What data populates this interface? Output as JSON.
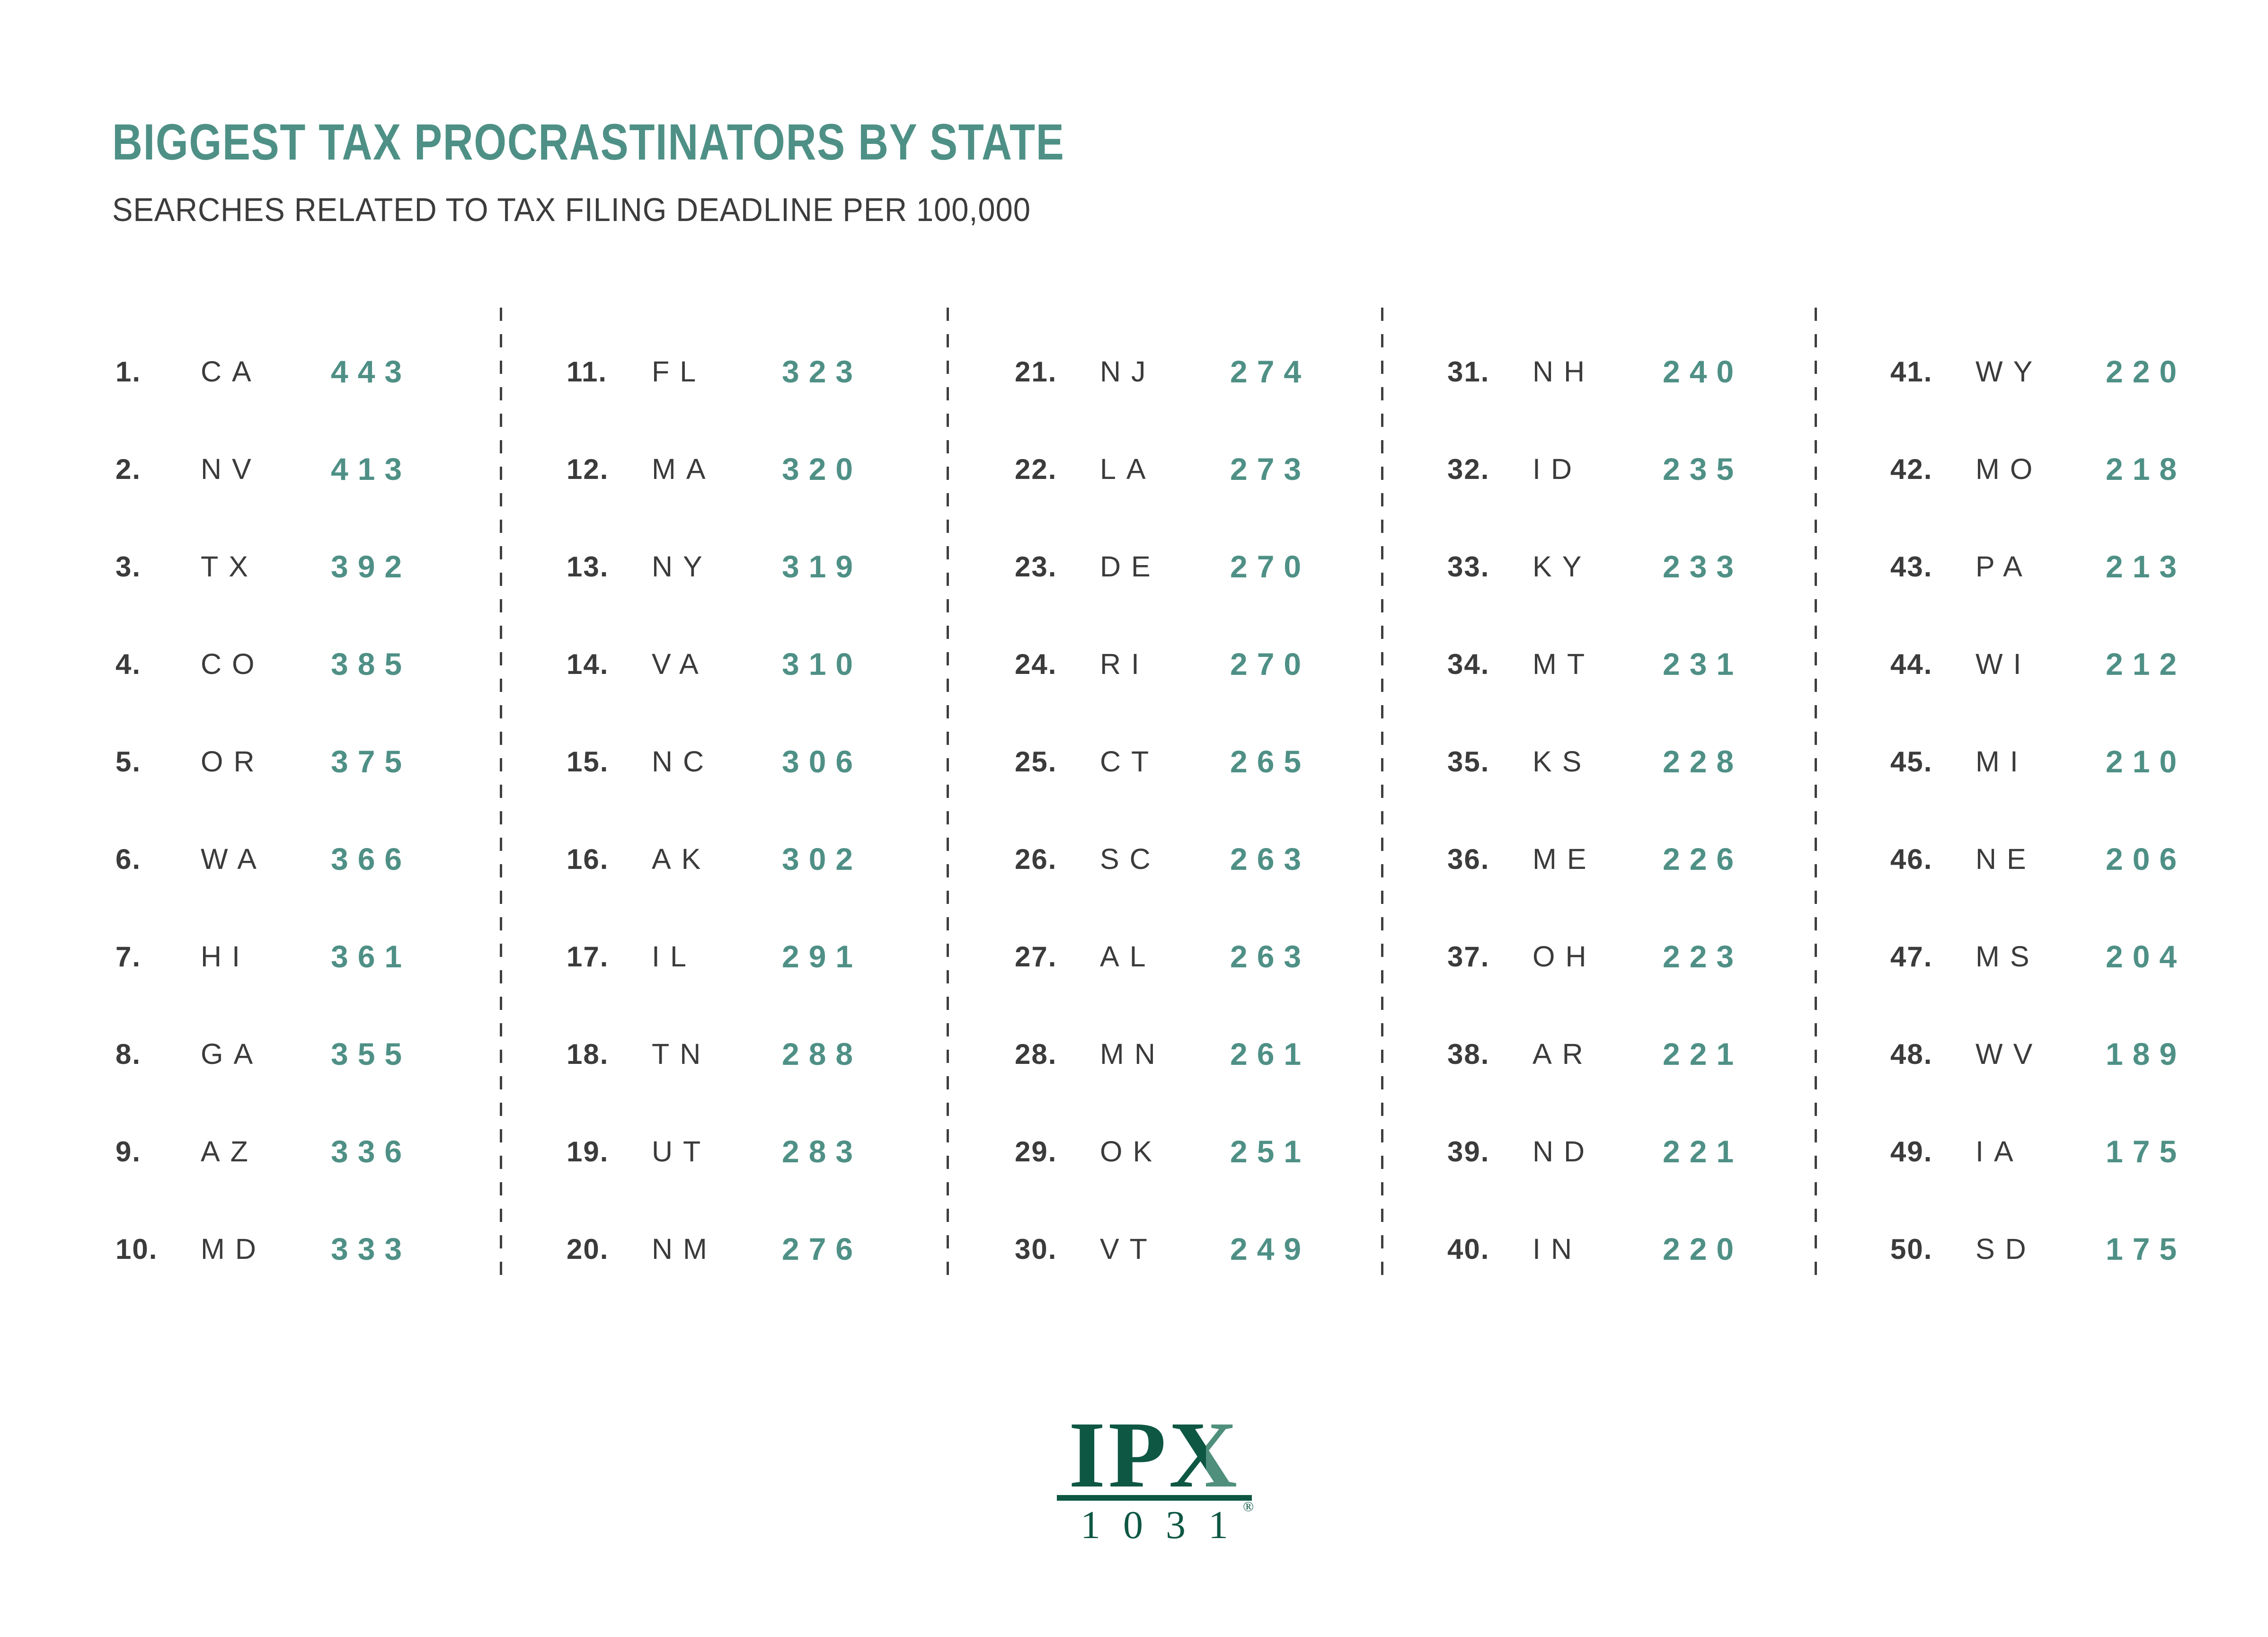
{
  "colors": {
    "accent_teal": "#4E9086",
    "value_teal": "#4F9086",
    "dark_text": "#3B3B3B",
    "logo_green": "#0E5743",
    "logo_light_green": "#4F8F7C"
  },
  "chart_data": {
    "type": "table",
    "title": "BIGGEST TAX PROCRASTINATORS BY STATE",
    "subtitle": "SEARCHES RELATED TO TAX FILING DEADLINE PER 100,000",
    "unit": "searches per 100,000",
    "layout": "5 columns of 10 ranked entries, dashed vertical dividers between columns",
    "columns": [
      {
        "entries": [
          {
            "rank": "1.",
            "state": "CA",
            "value": 443
          },
          {
            "rank": "2.",
            "state": "NV",
            "value": 413
          },
          {
            "rank": "3.",
            "state": "TX",
            "value": 392
          },
          {
            "rank": "4.",
            "state": "CO",
            "value": 385
          },
          {
            "rank": "5.",
            "state": "OR",
            "value": 375
          },
          {
            "rank": "6.",
            "state": "WA",
            "value": 366
          },
          {
            "rank": "7.",
            "state": "HI",
            "value": 361
          },
          {
            "rank": "8.",
            "state": "GA",
            "value": 355
          },
          {
            "rank": "9.",
            "state": "AZ",
            "value": 336
          },
          {
            "rank": "10.",
            "state": "MD",
            "value": 333
          }
        ]
      },
      {
        "entries": [
          {
            "rank": "11.",
            "state": "FL",
            "value": 323
          },
          {
            "rank": "12.",
            "state": "MA",
            "value": 320
          },
          {
            "rank": "13.",
            "state": "NY",
            "value": 319
          },
          {
            "rank": "14.",
            "state": "VA",
            "value": 310
          },
          {
            "rank": "15.",
            "state": "NC",
            "value": 306
          },
          {
            "rank": "16.",
            "state": "AK",
            "value": 302
          },
          {
            "rank": "17.",
            "state": "IL",
            "value": 291
          },
          {
            "rank": "18.",
            "state": "TN",
            "value": 288
          },
          {
            "rank": "19.",
            "state": "UT",
            "value": 283
          },
          {
            "rank": "20.",
            "state": "NM",
            "value": 276
          }
        ]
      },
      {
        "entries": [
          {
            "rank": "21.",
            "state": "NJ",
            "value": 274
          },
          {
            "rank": "22.",
            "state": "LA",
            "value": 273
          },
          {
            "rank": "23.",
            "state": "DE",
            "value": 270
          },
          {
            "rank": "24.",
            "state": "RI",
            "value": 270
          },
          {
            "rank": "25.",
            "state": "CT",
            "value": 265
          },
          {
            "rank": "26.",
            "state": "SC",
            "value": 263
          },
          {
            "rank": "27.",
            "state": "AL",
            "value": 263
          },
          {
            "rank": "28.",
            "state": "MN",
            "value": 261
          },
          {
            "rank": "29.",
            "state": "OK",
            "value": 251
          },
          {
            "rank": "30.",
            "state": "VT",
            "value": 249
          }
        ]
      },
      {
        "entries": [
          {
            "rank": "31.",
            "state": "NH",
            "value": 240
          },
          {
            "rank": "32.",
            "state": "ID",
            "value": 235
          },
          {
            "rank": "33.",
            "state": "KY",
            "value": 233
          },
          {
            "rank": "34.",
            "state": "MT",
            "value": 231
          },
          {
            "rank": "35.",
            "state": "KS",
            "value": 228
          },
          {
            "rank": "36.",
            "state": "ME",
            "value": 226
          },
          {
            "rank": "37.",
            "state": "OH",
            "value": 223
          },
          {
            "rank": "38.",
            "state": "AR",
            "value": 221
          },
          {
            "rank": "39.",
            "state": "ND",
            "value": 221
          },
          {
            "rank": "40.",
            "state": "IN",
            "value": 220
          }
        ]
      },
      {
        "entries": [
          {
            "rank": "41.",
            "state": "WY",
            "value": 220
          },
          {
            "rank": "42.",
            "state": "MO",
            "value": 218
          },
          {
            "rank": "43.",
            "state": "PA",
            "value": 213
          },
          {
            "rank": "44.",
            "state": "WI",
            "value": 212
          },
          {
            "rank": "45.",
            "state": "MI",
            "value": 210
          },
          {
            "rank": "46.",
            "state": "NE",
            "value": 206
          },
          {
            "rank": "47.",
            "state": "MS",
            "value": 204
          },
          {
            "rank": "48.",
            "state": "WV",
            "value": 189
          },
          {
            "rank": "49.",
            "state": "IA",
            "value": 175
          },
          {
            "rank": "50.",
            "state": "SD",
            "value": 175
          }
        ]
      }
    ]
  },
  "logo": {
    "ip": "IP",
    "x": "X",
    "digits": "1031",
    "registered": "®"
  }
}
